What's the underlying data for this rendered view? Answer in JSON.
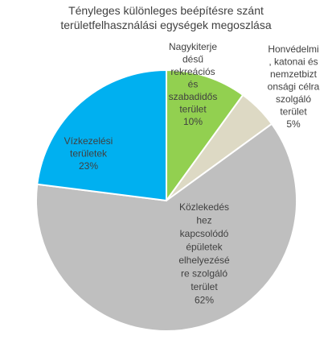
{
  "chart_data": {
    "type": "pie",
    "title_lines": [
      "Tényleges különleges beépítésre szánt",
      "területfelhasználási egységek megoszlása"
    ],
    "slices": [
      {
        "name": "Nagykiterjedésű rekreációs és szabadidős terület",
        "value": 10,
        "color": "#92d050",
        "label_lines": [
          "Nagykiterje",
          "désű",
          "rekreációs",
          "és",
          "szabadidős",
          "terület",
          "10%"
        ]
      },
      {
        "name": "Honvédelmi, katonai és nemzetbiztonsági célra szolgáló terület",
        "value": 5,
        "color": "#ddd9c4",
        "label_lines": [
          "Honvédelmi",
          ", katonai és",
          "nemzetbizt",
          "onsági célra",
          "szolgáló",
          "terület",
          "5%"
        ]
      },
      {
        "name": "Közlekedéshez kapcsolódó épületek elhelyezésére szolgáló terület",
        "value": 62,
        "color": "#bfbfbf",
        "label_lines": [
          "Közlekedés",
          "hez",
          "kapcsolódó",
          "épületek",
          "elhelyezésé",
          "re szolgáló",
          "terület",
          "62%"
        ]
      },
      {
        "name": "Vízkezelési területek",
        "value": 23,
        "color": "#00b0f0",
        "label_lines": [
          "Vízkezelési",
          "területek",
          "23%"
        ]
      }
    ]
  }
}
